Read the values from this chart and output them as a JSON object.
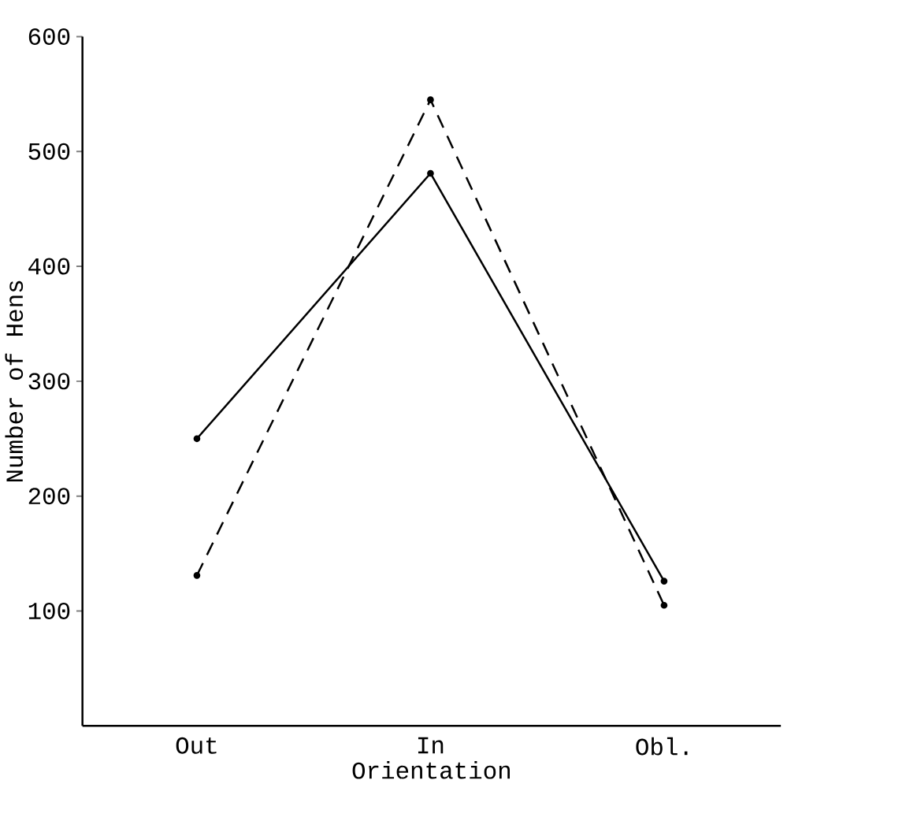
{
  "chart_data": {
    "type": "line",
    "xlabel": "Orientation",
    "ylabel": "Number of Hens",
    "categories": [
      "Out",
      "In",
      "Obl."
    ],
    "series": [
      {
        "color": "#000000",
        "values": [
          250,
          481,
          126
        ],
        "line_style": "solid"
      },
      {
        "color": "#000000",
        "values": [
          131,
          545,
          105
        ],
        "line_style": "dashed"
      }
    ],
    "ylim": [
      0,
      600
    ],
    "yticks": [
      100,
      200,
      300,
      400,
      500,
      600
    ],
    "marker": "circle",
    "grid": false
  }
}
